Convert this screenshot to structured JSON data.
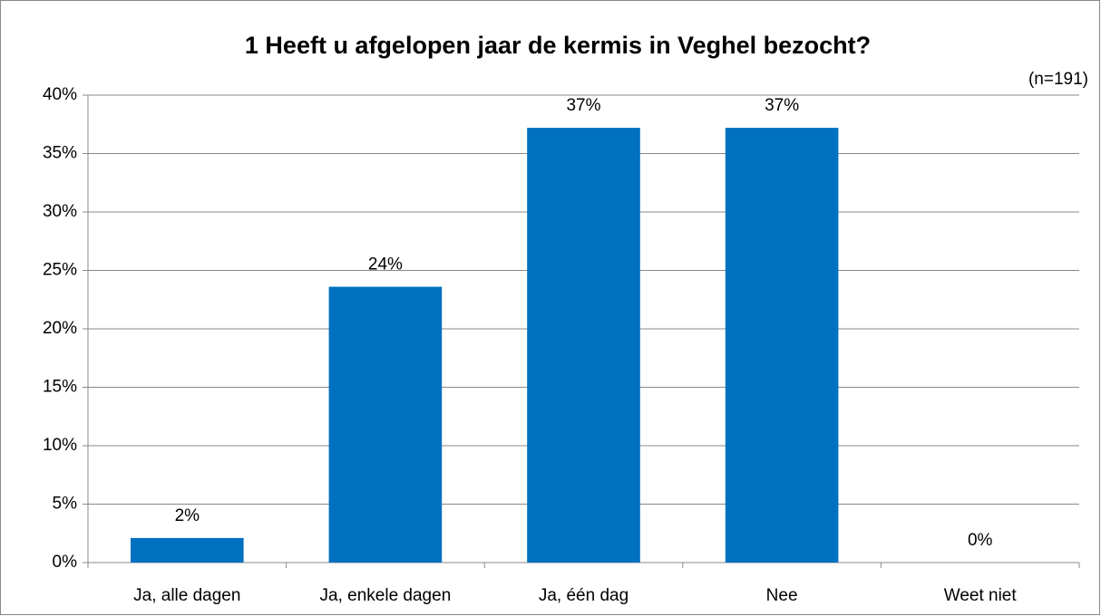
{
  "chart_data": {
    "type": "bar",
    "title": "1 Heeft u afgelopen jaar de kermis in Veghel bezocht?",
    "annotation": "(n=191)",
    "categories": [
      "Ja, alle dagen",
      "Ja, enkele dagen",
      "Ja, één dag",
      "Nee",
      "Weet niet"
    ],
    "values": [
      2.1,
      23.6,
      37.2,
      37.2,
      0
    ],
    "value_labels": [
      "2%",
      "24%",
      "37%",
      "37%",
      "0%"
    ],
    "color": "#0070c0",
    "ylim": [
      0,
      40
    ],
    "yticks": [
      {
        "value": 0,
        "label": "0%"
      },
      {
        "value": 5,
        "label": "5%"
      },
      {
        "value": 10,
        "label": "10%"
      },
      {
        "value": 15,
        "label": "15%"
      },
      {
        "value": 20,
        "label": "20%"
      },
      {
        "value": 25,
        "label": "25%"
      },
      {
        "value": 30,
        "label": "30%"
      },
      {
        "value": 35,
        "label": "35%"
      },
      {
        "value": 40,
        "label": "40%"
      }
    ],
    "grid": true
  }
}
